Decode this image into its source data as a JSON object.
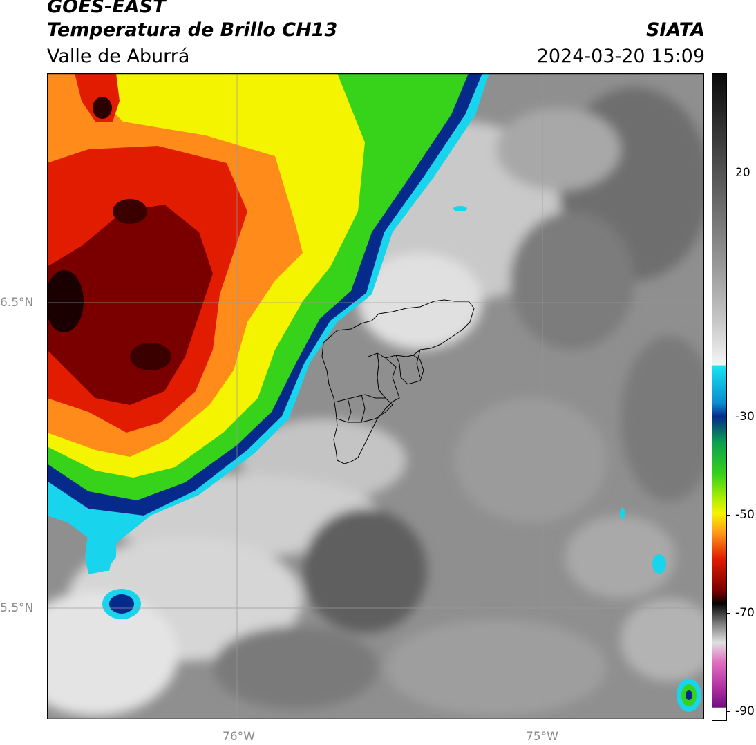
{
  "header": {
    "satellite": "GOES-EAST",
    "product": "Temperatura de Brillo CH13",
    "region": "Valle de Aburrá",
    "organization": "SIATA",
    "datetime": "2024-03-20 15:09"
  },
  "axes": {
    "lat_labels": [
      "6.5°N",
      "5.5°N"
    ],
    "lon_labels": [
      "76°W",
      "75°W"
    ]
  },
  "colorbar": {
    "ticks": [
      "20",
      "-30",
      "-50",
      "-70",
      "-90"
    ],
    "range": [
      -93,
      38
    ],
    "scale": "grayscale above -20, colored (cyan/blue/green/yellow/orange/red/black/magenta) below -20"
  },
  "colors": {
    "cloud_warm_red": "#e21c00",
    "cloud_dark_red": "#7a0000",
    "cloud_orange": "#ff8c1a",
    "cloud_yellow": "#f4f400",
    "cloud_green": "#37d21a",
    "cloud_blue": "#062a8c",
    "cloud_cyan": "#18d4ec",
    "background_gray": "#8c8c8c"
  }
}
